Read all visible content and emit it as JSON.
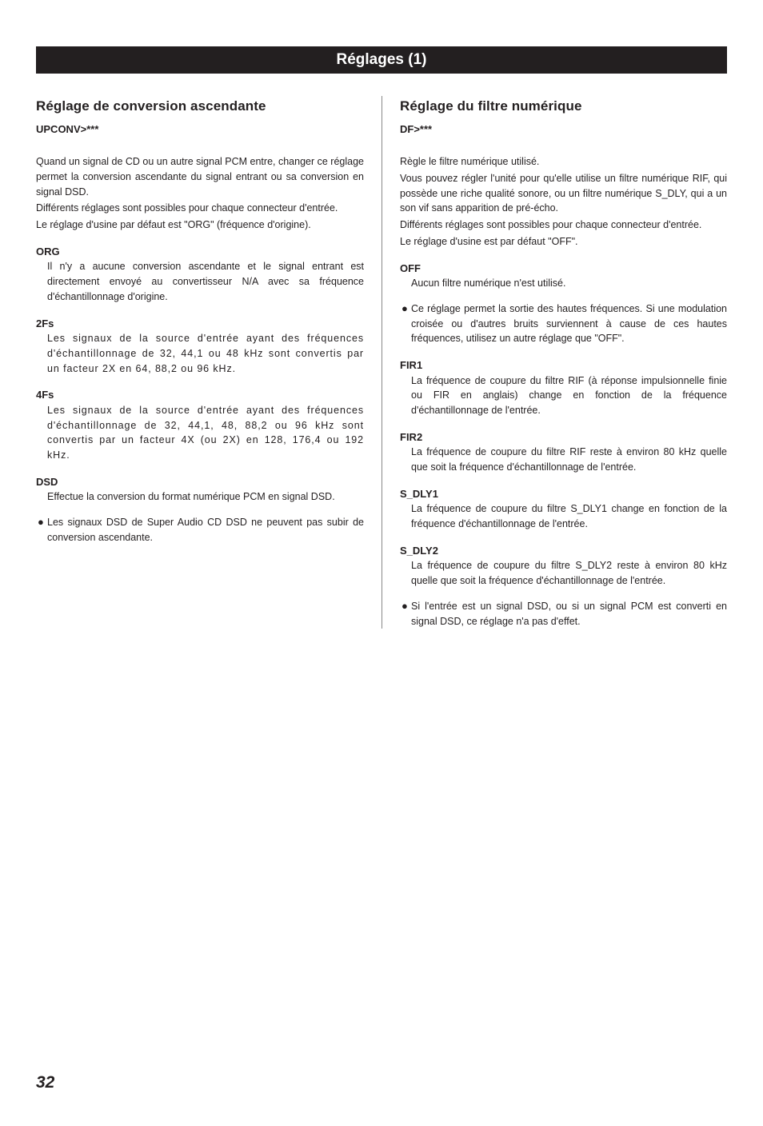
{
  "header": {
    "title": "Réglages (1)"
  },
  "left": {
    "section_title": "Réglage de conversion ascendante",
    "subcode": "UPCONV>***",
    "intro": [
      "Quand un signal de CD ou un autre signal PCM entre, changer ce réglage permet la conversion ascendante du signal entrant ou sa conversion en signal DSD.",
      "Différents réglages sont possibles pour chaque connecteur d'entrée.",
      "Le réglage d'usine par défaut est \"ORG\" (fréquence d'origine)."
    ],
    "items": [
      {
        "term": "ORG",
        "def": "Il n'y a aucune conversion ascendante et le signal entrant est directement envoyé au convertisseur N/A avec sa fréquence d'échantillonnage d'origine."
      },
      {
        "term": "2Fs",
        "def": "Les signaux de la source d'entrée ayant des fréquences d'échantillonnage de 32, 44,1 ou 48 kHz sont convertis par un facteur 2X en 64, 88,2 ou 96 kHz.",
        "stretch_first": true
      },
      {
        "term": "4Fs",
        "def": "Les signaux de la source d'entrée ayant des fréquences d'échantillonnage de 32, 44,1, 48, 88,2 ou 96 kHz sont convertis par un facteur 4X (ou 2X) en 128, 176,4 ou 192 kHz.",
        "stretch_first": true
      },
      {
        "term": "DSD",
        "def": "Effectue la conversion du format numérique PCM en signal DSD."
      }
    ],
    "bullet": "Les signaux DSD de Super Audio CD DSD ne peuvent pas subir de conversion ascendante."
  },
  "right": {
    "section_title": "Réglage du filtre numérique",
    "subcode": "DF>***",
    "intro": [
      "Règle le filtre numérique utilisé.",
      "Vous pouvez régler l'unité pour qu'elle utilise un filtre numérique RIF, qui possède une riche qualité sonore, ou un filtre numérique S_DLY, qui a un son vif sans apparition de pré-écho.",
      "Différents réglages sont possibles pour chaque connecteur d'entrée.",
      "Le réglage d'usine est par défaut \"OFF\"."
    ],
    "off": {
      "term": "OFF",
      "def": "Aucun filtre numérique n'est utilisé."
    },
    "bullet1": "Ce réglage permet la sortie des hautes fréquences. Si une modulation croisée ou d'autres bruits surviennent à cause de ces hautes fréquences, utilisez un autre réglage que \"OFF\".",
    "items": [
      {
        "term": "FIR1",
        "def": "La fréquence de coupure du filtre RIF (à réponse impulsionnelle finie ou FIR en anglais) change en fonction de la fréquence d'échantillonnage de l'entrée."
      },
      {
        "term": "FIR2",
        "def": "La fréquence de coupure du filtre RIF reste à environ 80 kHz quelle que soit la fréquence d'échantillonnage de l'entrée."
      },
      {
        "term": "S_DLY1",
        "def": "La fréquence de coupure du filtre S_DLY1 change en fonction de la fréquence d'échantillonnage de l'entrée."
      },
      {
        "term": "S_DLY2",
        "def": "La fréquence de coupure du filtre S_DLY2 reste à environ 80 kHz quelle que soit la fréquence d'échantillonnage de l'entrée."
      }
    ],
    "bullet2": "Si l'entrée est un signal DSD, ou si un signal PCM est converti en signal DSD, ce réglage n'a pas d'effet."
  },
  "page_number": "32"
}
